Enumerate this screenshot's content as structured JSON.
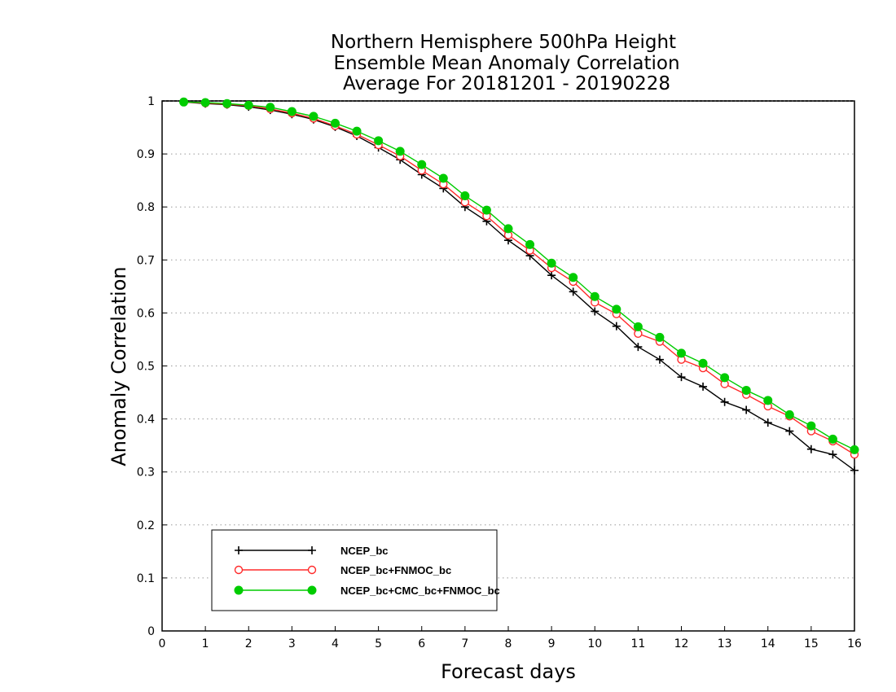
{
  "chart_data": {
    "type": "line",
    "title": [
      "Northern Hemisphere 500hPa Height",
      "Ensemble Mean Anomaly Correlation",
      "Average For 20181201 - 20190228"
    ],
    "xlabel": "Forecast days",
    "ylabel": "Anomaly Correlation",
    "xlim": [
      0,
      16
    ],
    "ylim": [
      0,
      1
    ],
    "xticks": [
      0,
      1,
      2,
      3,
      4,
      5,
      6,
      7,
      8,
      9,
      10,
      11,
      12,
      13,
      14,
      15,
      16
    ],
    "yticks": [
      0,
      0.1,
      0.2,
      0.3,
      0.4,
      0.5,
      0.6,
      0.7,
      0.8,
      0.9,
      1
    ],
    "yticklabels": [
      "0",
      "0.1",
      "0.2",
      "0.3",
      "0.4",
      "0.5",
      "0.6",
      "0.7",
      "0.8",
      "0.9",
      "1"
    ],
    "grid": "horizontal-dotted",
    "legend_position": "bottom-left",
    "x": [
      0.5,
      1,
      1.5,
      2,
      2.5,
      3,
      3.5,
      4,
      4.5,
      5,
      5.5,
      6,
      6.5,
      7,
      7.5,
      8,
      8.5,
      9,
      9.5,
      10,
      10.5,
      11,
      11.5,
      12,
      12.5,
      13,
      13.5,
      14,
      14.5,
      15,
      15.5,
      16
    ],
    "series": [
      {
        "name": "NCEP_bc",
        "color": "#000000",
        "marker": "plus",
        "values": [
          0.998,
          0.995,
          0.993,
          0.989,
          0.983,
          0.975,
          0.965,
          0.951,
          0.934,
          0.912,
          0.889,
          0.861,
          0.835,
          0.8,
          0.773,
          0.737,
          0.708,
          0.671,
          0.64,
          0.603,
          0.575,
          0.536,
          0.512,
          0.479,
          0.461,
          0.432,
          0.417,
          0.393,
          0.377,
          0.343,
          0.333,
          0.303
        ]
      },
      {
        "name": "NCEP_bc+FNMOC_bc",
        "color": "#ff2a2a",
        "marker": "open-circle",
        "values": [
          0.998,
          0.996,
          0.994,
          0.991,
          0.985,
          0.977,
          0.967,
          0.953,
          0.937,
          0.917,
          0.896,
          0.869,
          0.843,
          0.809,
          0.783,
          0.747,
          0.718,
          0.685,
          0.659,
          0.62,
          0.598,
          0.561,
          0.546,
          0.512,
          0.496,
          0.466,
          0.446,
          0.424,
          0.405,
          0.377,
          0.358,
          0.333
        ]
      },
      {
        "name": "NCEP_bc+CMC_bc+FNMOC_bc",
        "color": "#00cc00",
        "marker": "filled-circle",
        "values": [
          0.998,
          0.997,
          0.995,
          0.992,
          0.988,
          0.98,
          0.971,
          0.958,
          0.943,
          0.925,
          0.905,
          0.88,
          0.854,
          0.821,
          0.794,
          0.759,
          0.729,
          0.694,
          0.667,
          0.631,
          0.607,
          0.574,
          0.554,
          0.524,
          0.505,
          0.478,
          0.454,
          0.435,
          0.408,
          0.387,
          0.362,
          0.342
        ]
      }
    ]
  }
}
